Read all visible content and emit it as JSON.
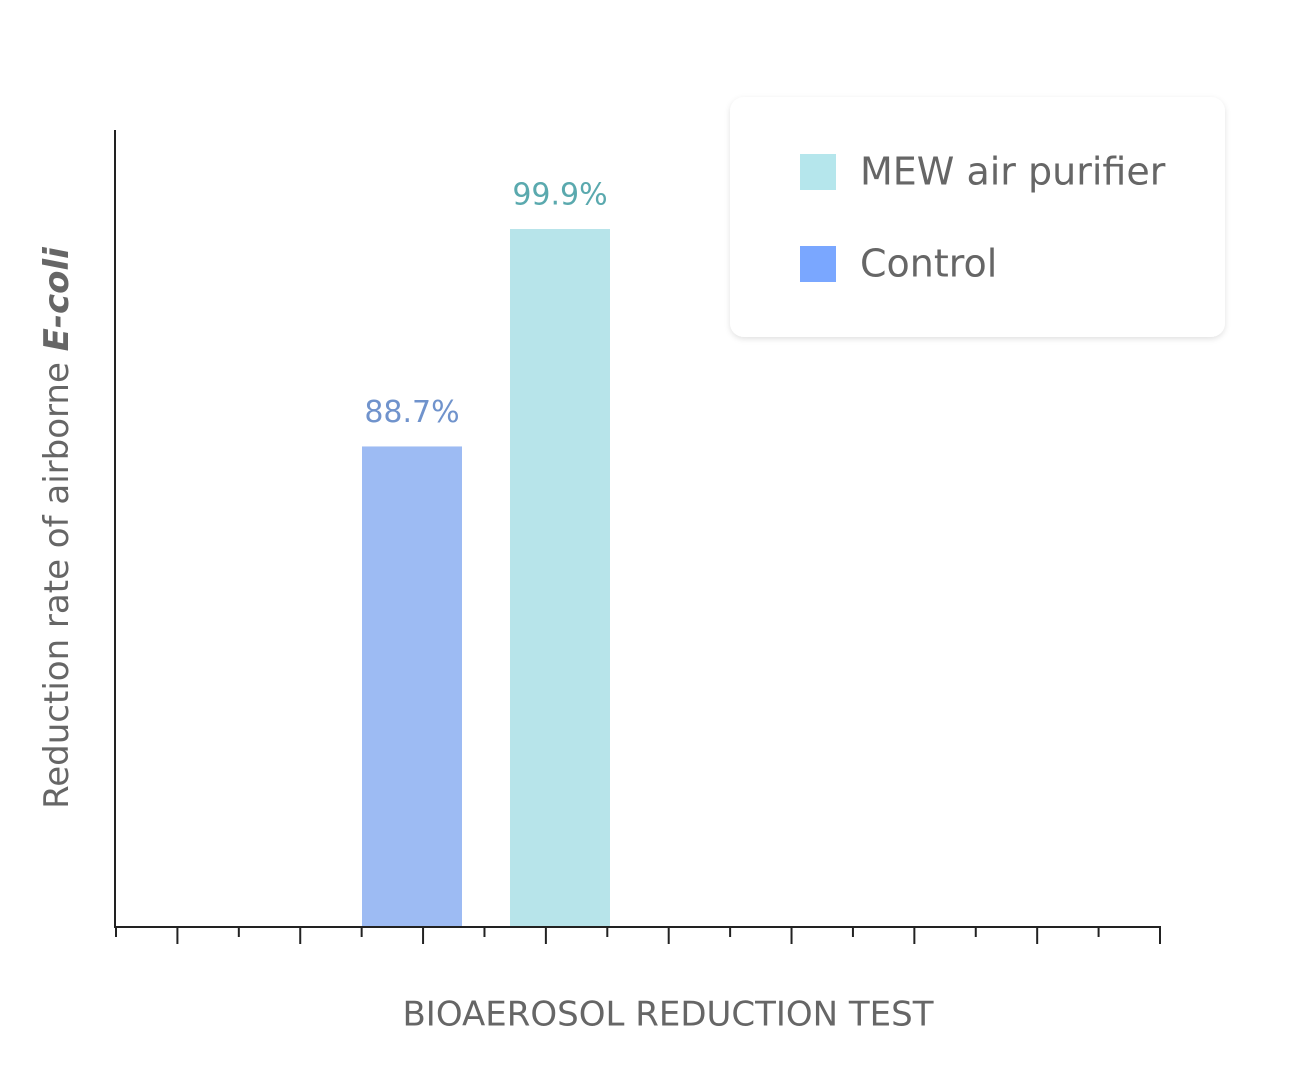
{
  "chart_data": {
    "type": "bar",
    "x_label": "BIOAEROSOL REDUCTION TEST",
    "y_label": "Reduction rate of airborne",
    "y_label_emphasis": "E-coli",
    "categories": [
      null
    ],
    "series": [
      {
        "name": "Control",
        "color": "#9dbbf3",
        "legend_color": "#7aa7ff",
        "label_color": "#7093cc",
        "values": [
          88.7
        ],
        "value_labels": [
          "88.7%"
        ]
      },
      {
        "name": "MEW air purifier",
        "color": "#b7e4ea",
        "legend_color": "#b5e6ec",
        "label_color": "#5aa9ae",
        "values": [
          99.9
        ],
        "value_labels": [
          "99.9%"
        ]
      }
    ],
    "ylim": [
      64,
      105
    ],
    "legend": "upper right"
  }
}
